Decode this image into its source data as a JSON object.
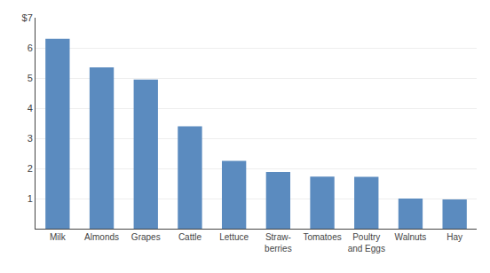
{
  "chart_data": {
    "type": "bar",
    "categories": [
      "Milk",
      "Almonds",
      "Grapes",
      "Cattle",
      "Lettuce",
      "Straw-\nberries",
      "Tomatoes",
      "Poultry\nand Eggs",
      "Walnuts",
      "Hay"
    ],
    "values": [
      6.3,
      5.35,
      4.95,
      3.4,
      2.25,
      1.88,
      1.73,
      1.72,
      1.0,
      0.97
    ],
    "color": "#5b8bbf",
    "ylim": [
      0,
      7
    ],
    "yticks": [
      1,
      2,
      3,
      4,
      5,
      6,
      {
        "value": 7,
        "label": "$7"
      }
    ],
    "grid": true
  }
}
